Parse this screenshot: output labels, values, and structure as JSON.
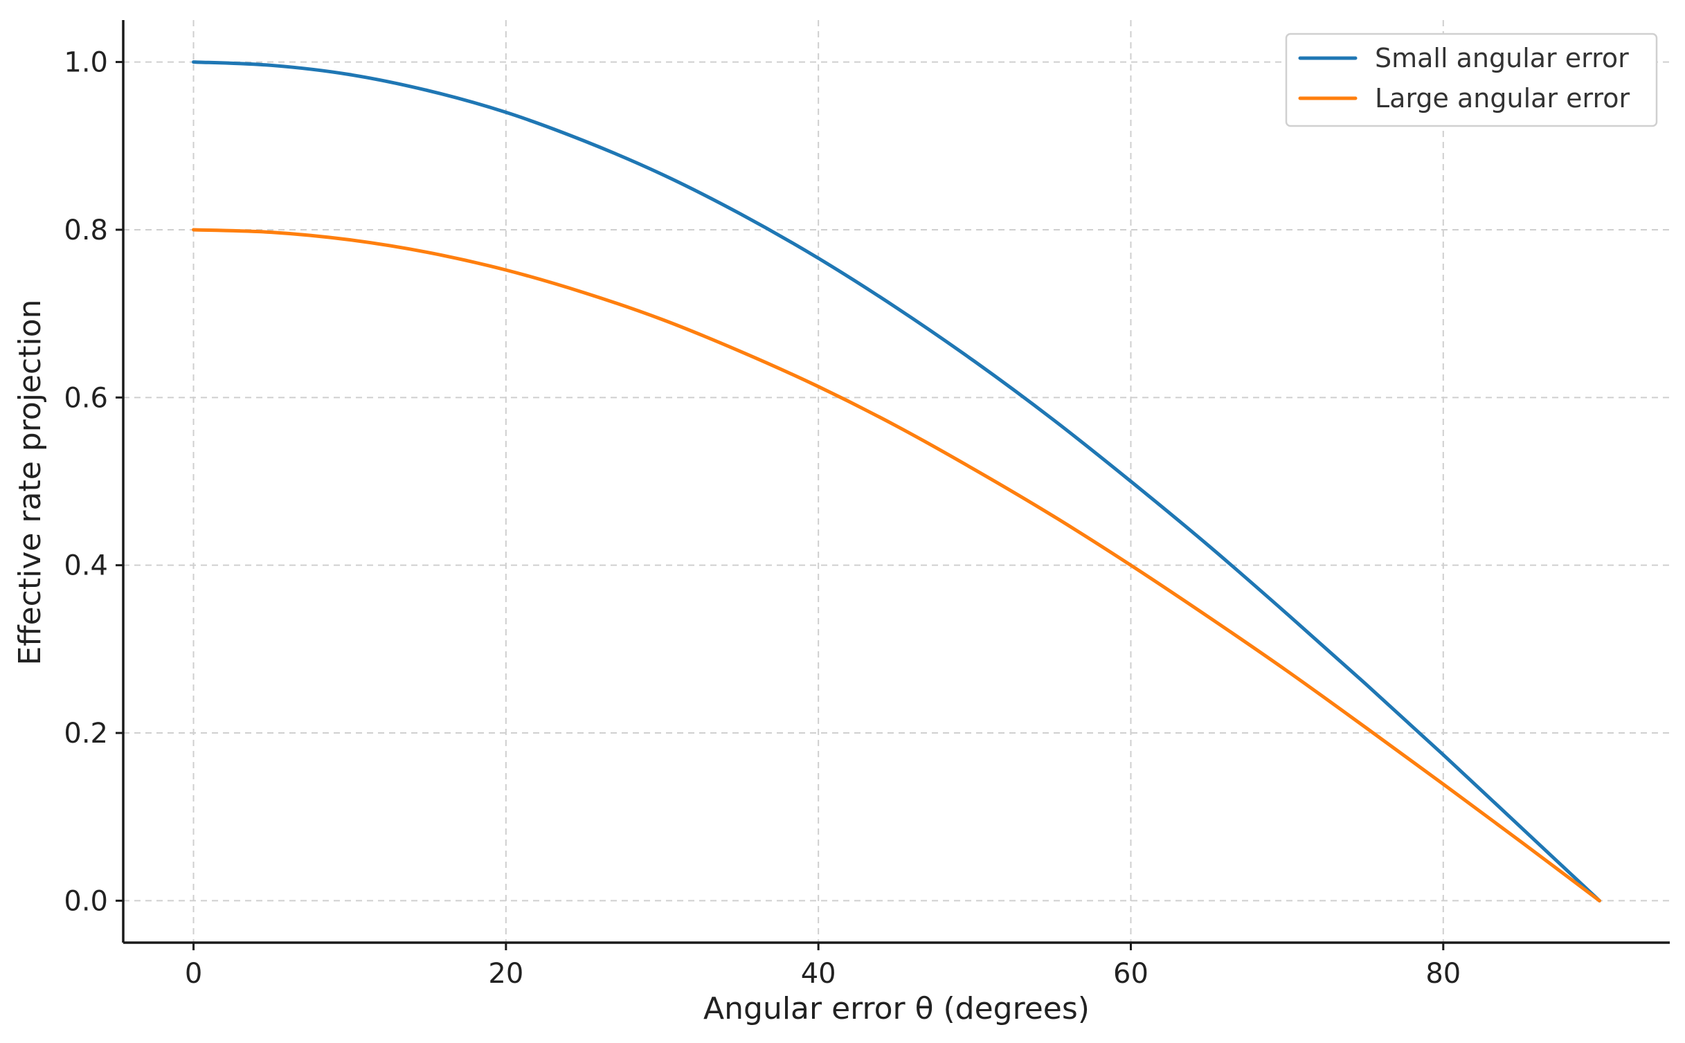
{
  "chart_data": {
    "type": "line",
    "title": "",
    "xlabel": "Angular error θ (degrees)",
    "ylabel": "Effective rate projection",
    "xlim": [
      -4.5,
      94.5
    ],
    "ylim": [
      -0.05,
      1.05
    ],
    "x_ticks": [
      0,
      20,
      40,
      60,
      80
    ],
    "x_tick_labels": [
      "0",
      "20",
      "40",
      "60",
      "80"
    ],
    "y_ticks": [
      0.0,
      0.2,
      0.4,
      0.6,
      0.8,
      1.0
    ],
    "y_tick_labels": [
      "0.0",
      "0.2",
      "0.4",
      "0.6",
      "0.8",
      "1.0"
    ],
    "grid": true,
    "legend_position": "top-right",
    "x": [
      0,
      5,
      10,
      15,
      20,
      25,
      30,
      35,
      40,
      45,
      50,
      55,
      60,
      65,
      70,
      75,
      80,
      85,
      90
    ],
    "series": [
      {
        "name": "Small angular error",
        "color": "#1f77b4",
        "values": [
          1.0,
          0.996,
          0.985,
          0.966,
          0.94,
          0.906,
          0.866,
          0.819,
          0.766,
          0.707,
          0.643,
          0.574,
          0.5,
          0.423,
          0.342,
          0.259,
          0.174,
          0.087,
          0.0
        ]
      },
      {
        "name": "Large angular error",
        "color": "#ff7f0e",
        "values": [
          0.8,
          0.797,
          0.788,
          0.773,
          0.752,
          0.725,
          0.693,
          0.655,
          0.613,
          0.566,
          0.514,
          0.459,
          0.4,
          0.338,
          0.274,
          0.207,
          0.139,
          0.07,
          0.0
        ]
      }
    ]
  }
}
